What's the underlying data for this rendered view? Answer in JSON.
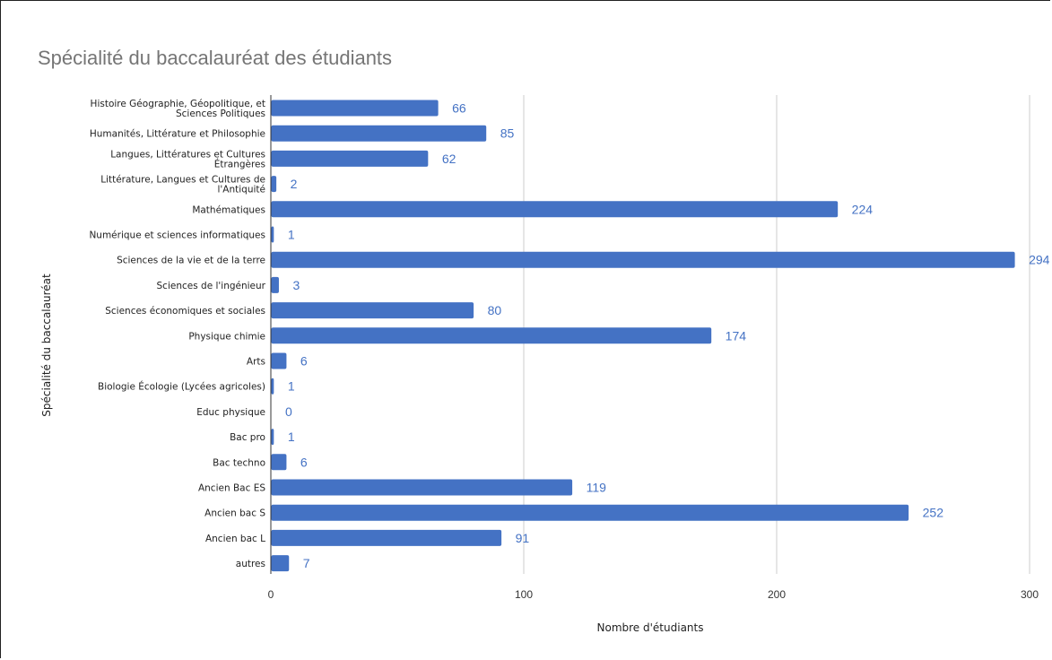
{
  "chart_data": {
    "type": "bar",
    "orientation": "horizontal",
    "title": "Spécialité du baccalauréat des étudiants",
    "xlabel": "Nombre d'étudiants",
    "ylabel": "Spécialité du baccalauréat",
    "xlim": [
      0,
      300
    ],
    "xticks": [
      0,
      100,
      200,
      300
    ],
    "grid": "vertical",
    "bar_color": "#4472c4",
    "label_color": "#4472c4",
    "categories": [
      [
        "Histoire Géographie, Géopolitique, et",
        "Sciences Politiques"
      ],
      [
        "Humanités, Littérature et Philosophie"
      ],
      [
        "Langues, Littératures et Cultures",
        "Étrangères"
      ],
      [
        "Littérature, Langues et Cultures de",
        "l'Antiquité"
      ],
      [
        "Mathématiques"
      ],
      [
        "Numérique et sciences informatiques"
      ],
      [
        "Sciences de la vie et de la terre"
      ],
      [
        "Sciences de l'ingénieur"
      ],
      [
        "Sciences économiques et sociales"
      ],
      [
        "Physique chimie"
      ],
      [
        "Arts"
      ],
      [
        "Biologie Écologie (Lycées agricoles)"
      ],
      [
        "Educ physique"
      ],
      [
        "Bac pro"
      ],
      [
        "Bac techno"
      ],
      [
        "Ancien Bac ES"
      ],
      [
        "Ancien bac S"
      ],
      [
        "Ancien bac L"
      ],
      [
        "autres"
      ]
    ],
    "values": [
      66,
      85,
      62,
      2,
      224,
      1,
      294,
      3,
      80,
      174,
      6,
      1,
      0,
      1,
      6,
      119,
      252,
      91,
      7
    ]
  }
}
